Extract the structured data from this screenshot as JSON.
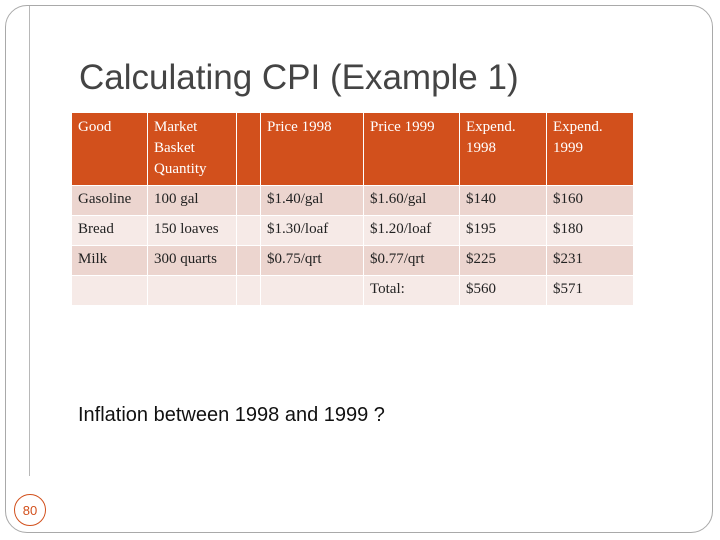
{
  "slide": {
    "title": "Calculating CPI (Example 1)",
    "question": "Inflation between 1998 and 1999 ?",
    "page_number": "80"
  },
  "colors": {
    "header_fill": "#d2501c",
    "row_dark": "#ecd5cf",
    "row_light": "#f6eae7",
    "badge_accent": "#d2501c"
  },
  "table": {
    "headers": [
      "Good",
      "Market Basket Quantity",
      "",
      "Price 1998",
      "Price 1999",
      "Expend. 1998",
      "Expend. 1999"
    ],
    "rows": [
      [
        "Gasoline",
        "100 gal",
        "",
        "$1.40/gal",
        "$1.60/gal",
        "$140",
        "$160"
      ],
      [
        "Bread",
        "150 loaves",
        "",
        "$1.30/loaf",
        "$1.20/loaf",
        "$195",
        "$180"
      ],
      [
        "Milk",
        "300 quarts",
        "",
        "$0.75/qrt",
        "$0.77/qrt",
        "$225",
        "$231"
      ],
      [
        "",
        "",
        "",
        "",
        "Total:",
        "$560",
        "$571"
      ]
    ]
  }
}
